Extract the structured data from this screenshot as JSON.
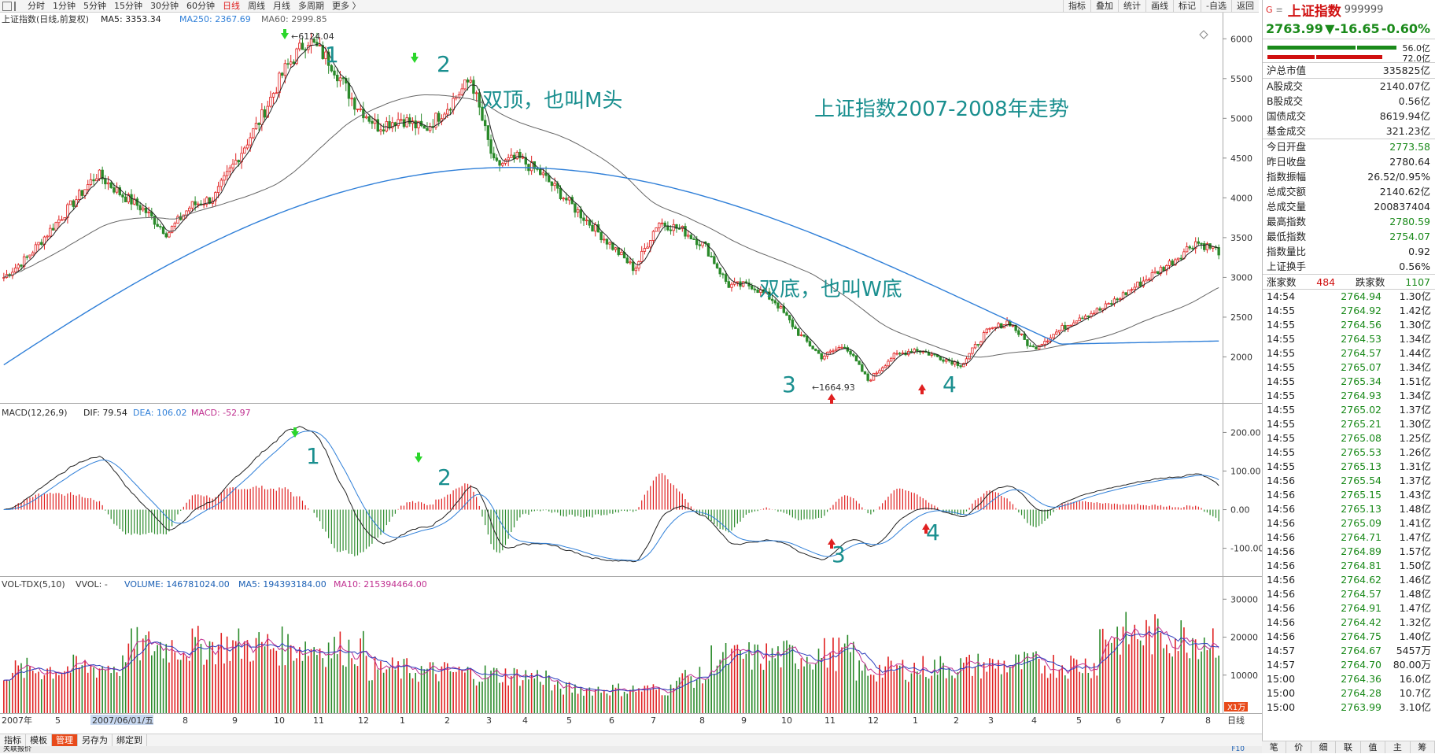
{
  "toolbar": {
    "periods": [
      "分时",
      "1分钟",
      "5分钟",
      "15分钟",
      "30分钟",
      "60分钟",
      "日线",
      "周线",
      "月线",
      "多周期",
      "更多 〉"
    ],
    "active_period": "日线",
    "tools": [
      "指标",
      "叠加",
      "统计",
      "画线",
      "标记",
      "-自选",
      "返回"
    ]
  },
  "main_panel": {
    "legend_name": "上证指数(日线,前复权)",
    "ma5": "MA5: 3353.34",
    "ma250": "MA250: 2367.69",
    "ma60": "MA60: 2999.85",
    "peak_label": "6124.04",
    "trough_label": "1664.93",
    "annotations": {
      "double_top": "双顶，也叫M头",
      "double_bottom": "双底，也叫W底",
      "title": "上证指数2007-2008年走势",
      "n1": "1",
      "n2": "2",
      "n3": "3",
      "n4": "4"
    }
  },
  "macd_panel": {
    "name": "MACD(12,26,9)",
    "dif": "DIF: 79.54",
    "dea": "DEA: 106.02",
    "macd": "MACD: -52.97",
    "n1": "1",
    "n2": "2",
    "n3": "3",
    "n4": "4"
  },
  "vol_panel": {
    "name": "VOL-TDX(5,10)",
    "vvol": "VVOL: -",
    "volume": "VOLUME: 146781024.00",
    "ma5": "MA5: 194393184.00",
    "ma10": "MA10: 215394464.00",
    "unit": "X1万"
  },
  "xaxis": {
    "labels": [
      "2007年",
      "5",
      "2007/06/01/五",
      "8",
      "9",
      "10",
      "11",
      "12",
      "1",
      "2",
      "3",
      "4",
      "5",
      "6",
      "7",
      "8",
      "9",
      "10",
      "11",
      "12",
      "1",
      "2",
      "3",
      "4",
      "5",
      "6",
      "7",
      "8"
    ],
    "right_label": "日线"
  },
  "chart_data": [
    {
      "type": "candlestick",
      "title": "上证指数2007-2008年走势",
      "ylim": [
        1664.93,
        6124.04
      ],
      "yticks": [
        2000,
        2500,
        3000,
        3500,
        4000,
        4500,
        5000,
        5500,
        6000
      ],
      "key_points": [
        {
          "label": "1",
          "value": 6124.04
        },
        {
          "label": "3",
          "value": 1664.93
        }
      ],
      "series": [
        {
          "name": "MA5",
          "last": 3353.34
        },
        {
          "name": "MA60",
          "last": 2999.85
        },
        {
          "name": "MA250",
          "last": 2367.69
        }
      ],
      "close_path": [
        3000,
        3250,
        3600,
        3950,
        4300,
        4050,
        3850,
        3550,
        3900,
        4000,
        4500,
        5000,
        5600,
        6000,
        5700,
        5200,
        4900,
        5000,
        4850,
        5150,
        5500,
        4400,
        4500,
        4300,
        4000,
        3700,
        3400,
        3100,
        3700,
        3600,
        3400,
        2900,
        2900,
        2700,
        2300,
        2000,
        2150,
        1700,
        2000,
        2100,
        2000,
        1900,
        2300,
        2450,
        2100,
        2300,
        2500,
        2600,
        2800,
        3000,
        3200,
        3450,
        3330
      ]
    },
    {
      "type": "line",
      "name": "MACD(12,26,9)",
      "yticks": [
        200,
        100,
        0,
        -100
      ],
      "series": [
        {
          "name": "DIF",
          "last": 79.54
        },
        {
          "name": "DEA",
          "last": 106.02
        },
        {
          "name": "MACD",
          "last": -52.97
        }
      ]
    },
    {
      "type": "bar",
      "name": "VOL-TDX(5,10)",
      "yticks": [
        30000,
        20000,
        10000
      ],
      "unit": "X1万",
      "series": [
        {
          "name": "VOLUME",
          "last": 146781024.0
        },
        {
          "name": "MA5",
          "last": 194393184.0
        },
        {
          "name": "MA10",
          "last": 215394464.0
        }
      ]
    }
  ],
  "quote": {
    "name": "上证指数",
    "code": "999999",
    "price": "2763.99",
    "change": "▼-16.65",
    "pct": "-0.60%",
    "bar1": "56.0亿",
    "bar2": "72.0亿",
    "rows1": [
      [
        "沪总市值",
        "335825亿"
      ]
    ],
    "rows2": [
      [
        "A股成交",
        "2140.07亿"
      ],
      [
        "B股成交",
        "0.56亿"
      ],
      [
        "国债成交",
        "8619.94亿"
      ],
      [
        "基金成交",
        "321.23亿"
      ]
    ],
    "rows3": [
      [
        "今日开盘",
        "2773.58"
      ],
      [
        "昨日收盘",
        "2780.64"
      ],
      [
        "指数振幅",
        "26.52/0.95%"
      ],
      [
        "总成交额",
        "2140.62亿"
      ],
      [
        "总成交量",
        "200837404"
      ],
      [
        "最高指数",
        "2780.59"
      ],
      [
        "最低指数",
        "2754.07"
      ],
      [
        "指数量比",
        "0.92"
      ],
      [
        "上证换手",
        "0.56%"
      ]
    ],
    "up_label": "涨家数",
    "up_count": "484",
    "down_label": "跌家数",
    "down_count": "1107"
  },
  "ticks": [
    [
      "14:54",
      "2764.94",
      "1.30亿"
    ],
    [
      "14:55",
      "2764.92",
      "1.42亿"
    ],
    [
      "14:55",
      "2764.56",
      "1.30亿"
    ],
    [
      "14:55",
      "2764.53",
      "1.34亿"
    ],
    [
      "14:55",
      "2764.57",
      "1.44亿"
    ],
    [
      "14:55",
      "2765.07",
      "1.34亿"
    ],
    [
      "14:55",
      "2765.34",
      "1.51亿"
    ],
    [
      "14:55",
      "2764.93",
      "1.34亿"
    ],
    [
      "14:55",
      "2765.02",
      "1.37亿"
    ],
    [
      "14:55",
      "2765.21",
      "1.30亿"
    ],
    [
      "14:55",
      "2765.08",
      "1.25亿"
    ],
    [
      "14:55",
      "2765.53",
      "1.26亿"
    ],
    [
      "14:55",
      "2765.13",
      "1.31亿"
    ],
    [
      "14:56",
      "2765.54",
      "1.37亿"
    ],
    [
      "14:56",
      "2765.15",
      "1.43亿"
    ],
    [
      "14:56",
      "2765.13",
      "1.48亿"
    ],
    [
      "14:56",
      "2765.09",
      "1.41亿"
    ],
    [
      "14:56",
      "2764.71",
      "1.47亿"
    ],
    [
      "14:56",
      "2764.89",
      "1.57亿"
    ],
    [
      "14:56",
      "2764.81",
      "1.50亿"
    ],
    [
      "14:56",
      "2764.62",
      "1.46亿"
    ],
    [
      "14:56",
      "2764.57",
      "1.48亿"
    ],
    [
      "14:56",
      "2764.91",
      "1.47亿"
    ],
    [
      "14:56",
      "2764.42",
      "1.32亿"
    ],
    [
      "14:56",
      "2764.75",
      "1.40亿"
    ],
    [
      "14:57",
      "2764.67",
      "5457万"
    ],
    [
      "14:57",
      "2764.70",
      "80.00万"
    ],
    [
      "15:00",
      "2764.36",
      "16.0亿"
    ],
    [
      "15:00",
      "2764.28",
      "10.7亿"
    ],
    [
      "15:00",
      "2763.99",
      "3.10亿"
    ]
  ],
  "bottom_tabs": [
    "指标",
    "模板",
    "管理",
    "另存为",
    "绑定到"
  ],
  "status": "关联报价",
  "right_tabs": [
    "笔",
    "价",
    "细",
    "联",
    "值",
    "主",
    "筹"
  ],
  "f10": "F10",
  "colors": {
    "up": "#e02020",
    "down": "#2a8a2a",
    "ma250": "#2f7fd8",
    "ma60": "#666666",
    "ma5": "#222222",
    "annot": "#1a8f8f",
    "dea": "#2f7fd8",
    "vol_ma5": "#c03090",
    "vol_ma10": "#2f3fbf"
  }
}
